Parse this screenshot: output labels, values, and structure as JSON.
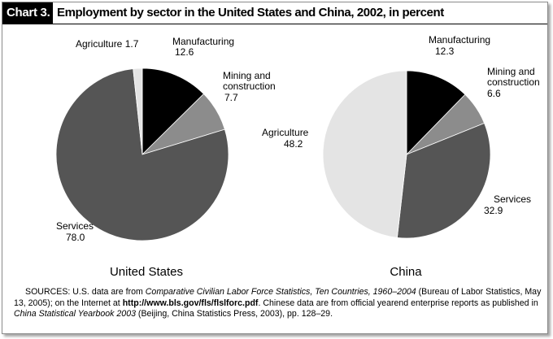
{
  "header": {
    "chart_number": "Chart 3.",
    "title": "Employment by sector in the United States and China, 2002, in percent"
  },
  "chart_data": [
    {
      "type": "pie",
      "title": "United States",
      "slices": [
        {
          "label": "Manufacturing",
          "value": 12.6,
          "value_text": "12.6",
          "color": "#000000"
        },
        {
          "label": "Mining and construction",
          "value": 7.7,
          "value_text": "7.7",
          "color": "#8c8c8c"
        },
        {
          "label": "Services",
          "value": 78.0,
          "value_text": "78.0",
          "color": "#555555"
        },
        {
          "label": "Agriculture",
          "value": 1.7,
          "value_text": "1.7",
          "color": "#e4e4e4"
        }
      ]
    },
    {
      "type": "pie",
      "title": "China",
      "slices": [
        {
          "label": "Manufacturing",
          "value": 12.3,
          "value_text": "12.3",
          "color": "#000000"
        },
        {
          "label": "Mining and construction",
          "value": 6.6,
          "value_text": "6.6",
          "color": "#8c8c8c"
        },
        {
          "label": "Services",
          "value": 32.9,
          "value_text": "32.9",
          "color": "#555555"
        },
        {
          "label": "Agriculture",
          "value": 48.2,
          "value_text": "48.2",
          "color": "#e4e4e4"
        }
      ]
    }
  ],
  "labels": {
    "us_agriculture": "Agriculture  1.7",
    "us_manufacturing": "Manufacturing",
    "us_manufacturing_val": "12.6",
    "us_mining_1": "Mining and",
    "us_mining_2": "construction",
    "us_mining_val": "7.7",
    "us_services": "Services",
    "us_services_val": "78.0",
    "cn_manufacturing": "Manufacturing",
    "cn_manufacturing_val": "12.3",
    "cn_mining_1": "Mining and",
    "cn_mining_2": "construction",
    "cn_mining_val": "6.6",
    "cn_agriculture": "Agriculture",
    "cn_agriculture_val": "48.2",
    "cn_services": "Services",
    "cn_services_val": "32.9"
  },
  "sources": {
    "prefix": "SOURCES: U.S. data are from ",
    "us_pub": "Comparative Civilian Labor Force Statistics, Ten Countries, 1960–2004",
    "mid1": " (Bureau of Labor Statistics, May 13, 2005); on the Internet at ",
    "url": "http://www.bls.gov/fls/flslforc.pdf",
    "mid2": ". Chinese data are from official yearend enterprise reports as published in ",
    "cn_pub": "China Statistical Yearbook 2003",
    "suffix": " (Beijing, China Statistics Press, 2003), pp. 128–29."
  }
}
